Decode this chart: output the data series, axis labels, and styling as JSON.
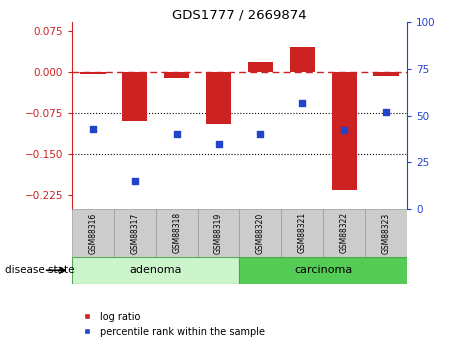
{
  "title": "GDS1777 / 2669874",
  "samples": [
    "GSM88316",
    "GSM88317",
    "GSM88318",
    "GSM88319",
    "GSM88320",
    "GSM88321",
    "GSM88322",
    "GSM88323"
  ],
  "log_ratio": [
    -0.005,
    -0.09,
    -0.012,
    -0.095,
    0.018,
    0.045,
    -0.215,
    -0.008
  ],
  "percentile_rank": [
    43,
    15,
    40,
    35,
    40,
    57,
    42,
    52
  ],
  "groups": [
    {
      "label": "adenoma",
      "indices": [
        0,
        1,
        2,
        3
      ],
      "color": "#ccf5cc",
      "edge": "#55aa55"
    },
    {
      "label": "carcinoma",
      "indices": [
        4,
        5,
        6,
        7
      ],
      "color": "#55cc55",
      "edge": "#44aa44"
    }
  ],
  "ylim_left": [
    -0.25,
    0.09
  ],
  "ylim_right": [
    0,
    100
  ],
  "yticks_left": [
    0.075,
    0,
    -0.075,
    -0.15,
    -0.225
  ],
  "yticks_right": [
    100,
    75,
    50,
    25,
    0
  ],
  "hlines": [
    -0.075,
    -0.15
  ],
  "bar_color": "#cc2222",
  "dot_color": "#2244cc",
  "group_label": "disease state",
  "legend_bar": "log ratio",
  "legend_dot": "percentile rank within the sample",
  "bar_width": 0.6,
  "sample_box_color": "#cccccc",
  "sample_box_edge": "#999999"
}
